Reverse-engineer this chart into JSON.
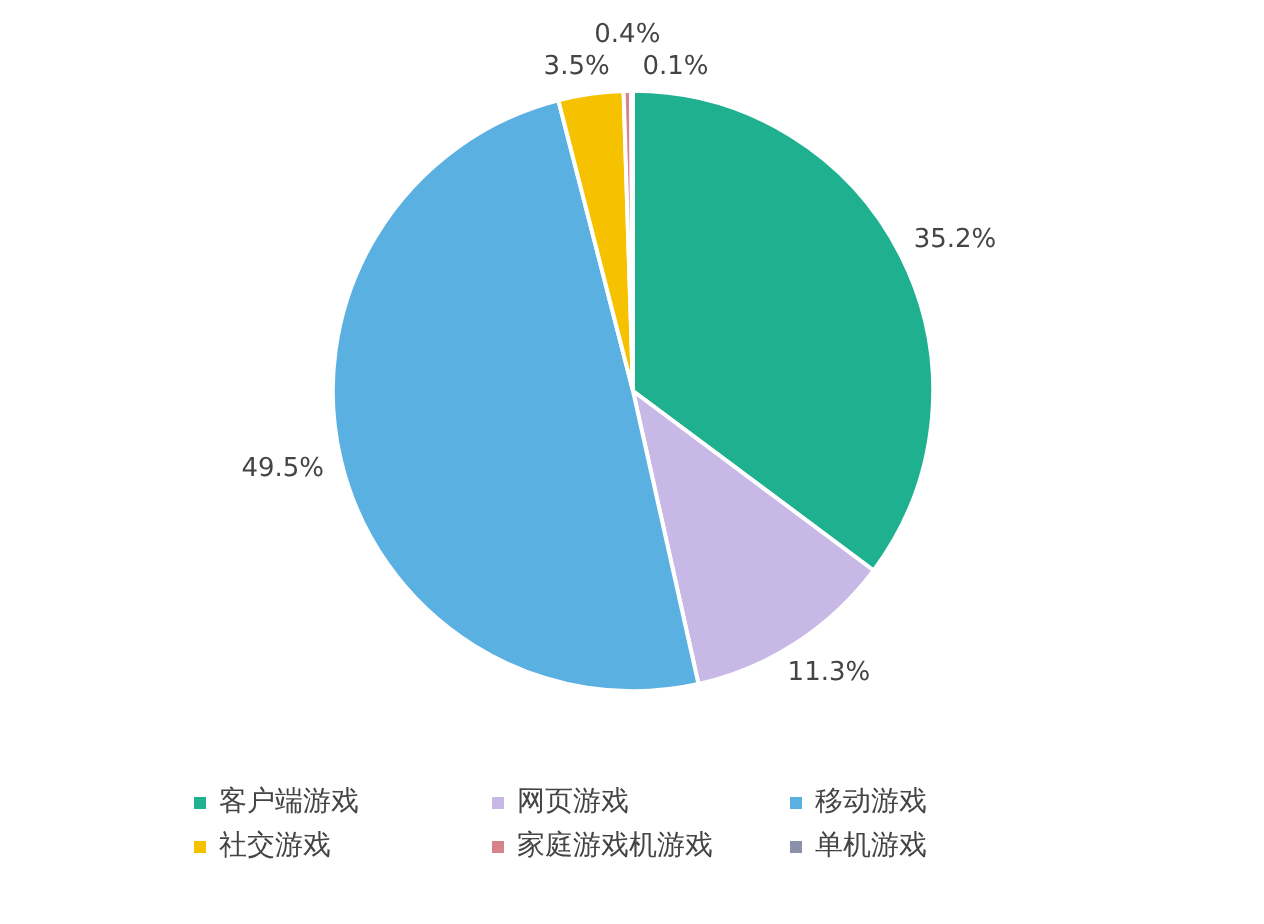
{
  "chart_data": {
    "type": "pie",
    "categories": [
      "客户端游戏",
      "网页游戏",
      "移动游戏",
      "社交游戏",
      "家庭游戏机游戏",
      "单机游戏"
    ],
    "values": [
      35.2,
      11.3,
      49.5,
      3.5,
      0.4,
      0.1
    ],
    "colors": [
      "#1fb08f",
      "#c8b8e6",
      "#5bb0e2",
      "#f6c200",
      "#d7838a",
      "#8b91aa"
    ],
    "value_labels": [
      "35.2%",
      "11.3%",
      "49.5%",
      "3.5%",
      "0.4%",
      "0.1%"
    ],
    "legend": "bottom"
  }
}
